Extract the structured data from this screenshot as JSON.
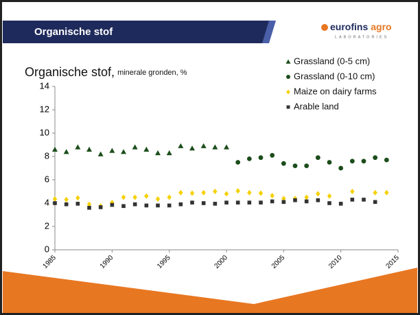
{
  "slide": {
    "header": "Organische stof",
    "logo_main": "eurofins",
    "logo_accent": "agro",
    "logo_sub": "LABORATORIES"
  },
  "chart_data": {
    "type": "scatter",
    "title": "Organische stof,",
    "subtitle": "minerale gronden, %",
    "x": [
      1985,
      1986,
      1987,
      1988,
      1989,
      1990,
      1991,
      1992,
      1993,
      1994,
      1995,
      1996,
      1997,
      1998,
      1999,
      2000,
      2001,
      2002,
      2003,
      2004,
      2005,
      2006,
      2007,
      2008,
      2009,
      2010,
      2011,
      2012,
      2013,
      2014
    ],
    "xlim": [
      1985,
      2015
    ],
    "xticks": [
      1985,
      1990,
      1995,
      2000,
      2005,
      2010,
      2015
    ],
    "ylim": [
      0,
      14
    ],
    "yticks": [
      0,
      2,
      4,
      6,
      8,
      10,
      12,
      14
    ],
    "grid": false,
    "legend": "upper right",
    "series": [
      {
        "name": "Grassland (0-5 cm)",
        "color": "#1b4d1b",
        "marker": "triangle",
        "values": [
          8.6,
          8.4,
          8.8,
          8.6,
          8.2,
          8.5,
          8.4,
          8.8,
          8.6,
          8.3,
          8.3,
          8.9,
          8.7,
          8.9,
          8.8,
          8.8,
          null,
          null,
          null,
          null,
          null,
          null,
          null,
          null,
          null,
          null,
          null,
          null,
          null,
          null
        ]
      },
      {
        "name": "Grassland (0-10 cm)",
        "color": "#1b4d1b",
        "marker": "circle",
        "values": [
          null,
          null,
          null,
          null,
          null,
          null,
          null,
          null,
          null,
          null,
          null,
          null,
          null,
          null,
          null,
          null,
          7.5,
          7.8,
          7.9,
          8.1,
          7.4,
          7.2,
          7.2,
          7.9,
          7.5,
          7.0,
          7.6,
          7.6,
          7.9,
          7.7
        ]
      },
      {
        "name": "Maize on dairy farms",
        "color": "#f5d000",
        "marker": "diamond",
        "values": [
          4.35,
          4.3,
          4.45,
          3.9,
          3.75,
          4.05,
          4.5,
          4.5,
          4.6,
          4.35,
          4.5,
          4.9,
          4.85,
          4.9,
          5.0,
          4.8,
          5.05,
          4.9,
          4.85,
          4.65,
          4.4,
          4.4,
          4.5,
          4.8,
          4.6,
          null,
          5.0,
          null,
          4.9,
          4.9
        ]
      },
      {
        "name": "Arable land",
        "color": "#333333",
        "marker": "square",
        "values": [
          4.0,
          3.9,
          3.95,
          3.6,
          3.65,
          3.85,
          3.75,
          3.9,
          3.8,
          3.8,
          3.8,
          3.9,
          4.05,
          4.0,
          3.95,
          4.05,
          4.05,
          4.05,
          4.05,
          4.15,
          4.1,
          4.25,
          4.15,
          4.25,
          4.0,
          3.95,
          4.3,
          4.3,
          4.1,
          null
        ]
      }
    ]
  }
}
